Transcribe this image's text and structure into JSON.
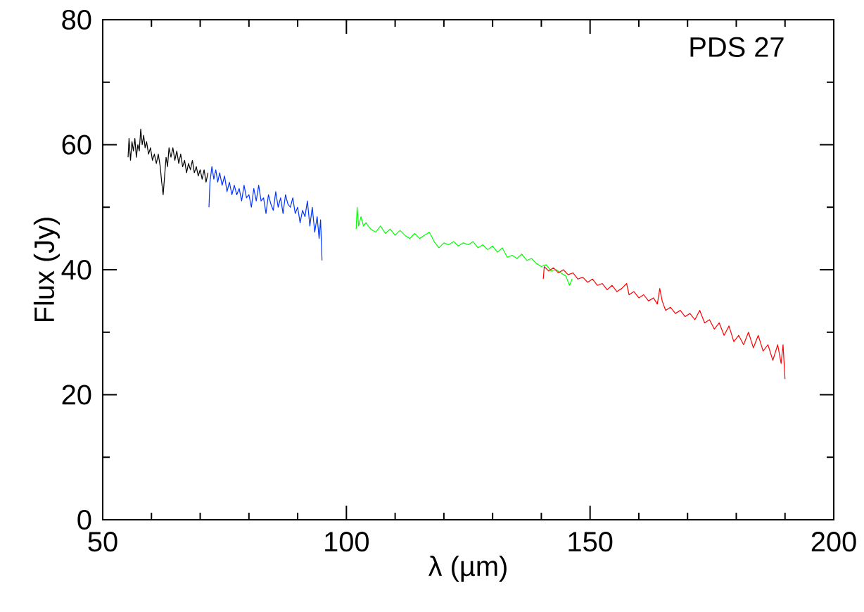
{
  "chart_data": {
    "type": "line",
    "xlabel": "λ (µm)",
    "ylabel": "Flux (Jy)",
    "annotations": [
      "PDS 27"
    ],
    "xlim": [
      50,
      200
    ],
    "xticks": [
      50,
      100,
      150,
      200
    ],
    "ylim": [
      0,
      80
    ],
    "yticks": [
      0,
      20,
      40,
      60,
      80
    ],
    "series": [
      {
        "color": "#000000",
        "x": [
          55.2,
          55.4,
          55.7,
          56.0,
          56.3,
          56.6,
          56.9,
          57.2,
          57.5,
          57.8,
          58.1,
          58.4,
          58.7,
          59.0,
          59.4,
          59.8,
          60.2,
          60.6,
          61.0,
          61.4,
          61.8,
          62.1,
          62.4,
          62.7,
          63.0,
          63.3,
          63.6,
          64.0,
          64.4,
          64.8,
          65.2,
          65.6,
          66.0,
          66.4,
          66.8,
          67.2,
          67.6,
          68.0,
          68.4,
          68.8,
          69.2,
          69.6,
          70.0,
          70.4,
          70.8,
          71.2,
          71.6
        ],
        "values": [
          58,
          61,
          57.5,
          60.5,
          59,
          61,
          58,
          60,
          59,
          62.5,
          60,
          61.5,
          59.5,
          60.5,
          58.5,
          59.5,
          57.5,
          58.5,
          57,
          58.5,
          56.5,
          54,
          52,
          55,
          58,
          56.5,
          59.5,
          58,
          59.5,
          57.5,
          59,
          57,
          58.5,
          56.5,
          57.5,
          55.5,
          57,
          56,
          57.5,
          55.5,
          56.5,
          55,
          56,
          54.5,
          56,
          54,
          55.5
        ]
      },
      {
        "color": "#0033ff",
        "x": [
          71.8,
          72.0,
          72.4,
          72.8,
          73.2,
          73.6,
          74.0,
          74.5,
          75.0,
          75.5,
          76.0,
          76.5,
          77.0,
          77.5,
          78.0,
          78.5,
          79.0,
          79.5,
          80.0,
          80.5,
          81.0,
          81.5,
          82.0,
          82.5,
          83.0,
          83.5,
          84.0,
          84.5,
          85.0,
          85.5,
          86.0,
          86.5,
          87.0,
          87.5,
          88.0,
          88.5,
          89.0,
          89.5,
          90.0,
          90.5,
          91.0,
          91.5,
          92.0,
          92.5,
          93.0,
          93.5,
          94.0,
          94.4,
          94.7,
          95.0
        ],
        "values": [
          50,
          54,
          56.5,
          54.5,
          56,
          54,
          55.5,
          53.5,
          55,
          52.5,
          54,
          52,
          53.5,
          52,
          53,
          51,
          53.5,
          51.5,
          52,
          50,
          53,
          51,
          53.5,
          51,
          51.5,
          49,
          52,
          50.5,
          49.5,
          52.5,
          50,
          51.5,
          49,
          52,
          50.5,
          50,
          51.5,
          49,
          50,
          47.5,
          49.5,
          48.5,
          51,
          47,
          50,
          46,
          48.5,
          45,
          48,
          41.5
        ]
      },
      {
        "color": "#00ff00",
        "x": [
          102.0,
          102.2,
          102.5,
          103,
          103.5,
          104,
          105,
          106,
          107,
          108,
          109,
          110,
          111,
          112,
          113,
          114,
          115,
          116,
          117,
          117.5,
          118,
          119,
          120,
          121,
          122,
          123,
          124,
          125,
          126,
          127,
          128,
          129,
          130,
          131,
          132,
          133,
          134,
          135,
          136,
          137,
          138,
          139,
          140,
          141,
          142,
          143,
          144,
          145,
          145.8,
          146.3
        ],
        "values": [
          46.5,
          50,
          47,
          48.5,
          47,
          47.5,
          46.5,
          46,
          47,
          45.8,
          46.5,
          45.5,
          46.3,
          45.5,
          45,
          45.8,
          45,
          45.5,
          46,
          45.3,
          44.5,
          43.5,
          44.3,
          44,
          44.5,
          43.8,
          44.3,
          44,
          44.5,
          43.5,
          44,
          43.2,
          43.8,
          42.8,
          43.5,
          42,
          42.3,
          41.8,
          42.5,
          41.5,
          41.8,
          41,
          40.5,
          40.8,
          39.8,
          40,
          39.5,
          39,
          37.5,
          38.5
        ]
      },
      {
        "color": "#ff0000",
        "x": [
          140.4,
          140.6,
          141.5,
          142.5,
          143.5,
          144.5,
          145.5,
          146.5,
          147.5,
          148.5,
          149.5,
          150.5,
          151.5,
          152.5,
          153.5,
          154.5,
          155.5,
          156.5,
          157.5,
          158,
          159,
          160,
          161,
          162,
          163,
          163.8,
          164.3,
          164.8,
          165.5,
          166.5,
          167.5,
          168.5,
          169.5,
          170.5,
          171.5,
          172.5,
          173.5,
          174.5,
          175.5,
          176.5,
          177.5,
          178.5,
          179.5,
          180.5,
          181.5,
          182.5,
          183.5,
          184.5,
          185.5,
          186.5,
          187.5,
          188.5,
          189.2,
          189.6,
          190.0
        ],
        "values": [
          38.5,
          40.5,
          39.8,
          40.3,
          39.5,
          40,
          39.2,
          39.5,
          38.5,
          38.8,
          38,
          38.5,
          37.5,
          37.8,
          36.8,
          37.5,
          36.5,
          37,
          37.8,
          36,
          36.5,
          35.5,
          36,
          35,
          35.5,
          34.5,
          37,
          35,
          33.5,
          34,
          33,
          33.5,
          32.5,
          33,
          32,
          33.5,
          31.5,
          32,
          30.5,
          31.5,
          29.5,
          31,
          28.5,
          29.5,
          28,
          30,
          27.5,
          29.5,
          27,
          28,
          25.5,
          28,
          25,
          28,
          22.5
        ]
      }
    ]
  }
}
